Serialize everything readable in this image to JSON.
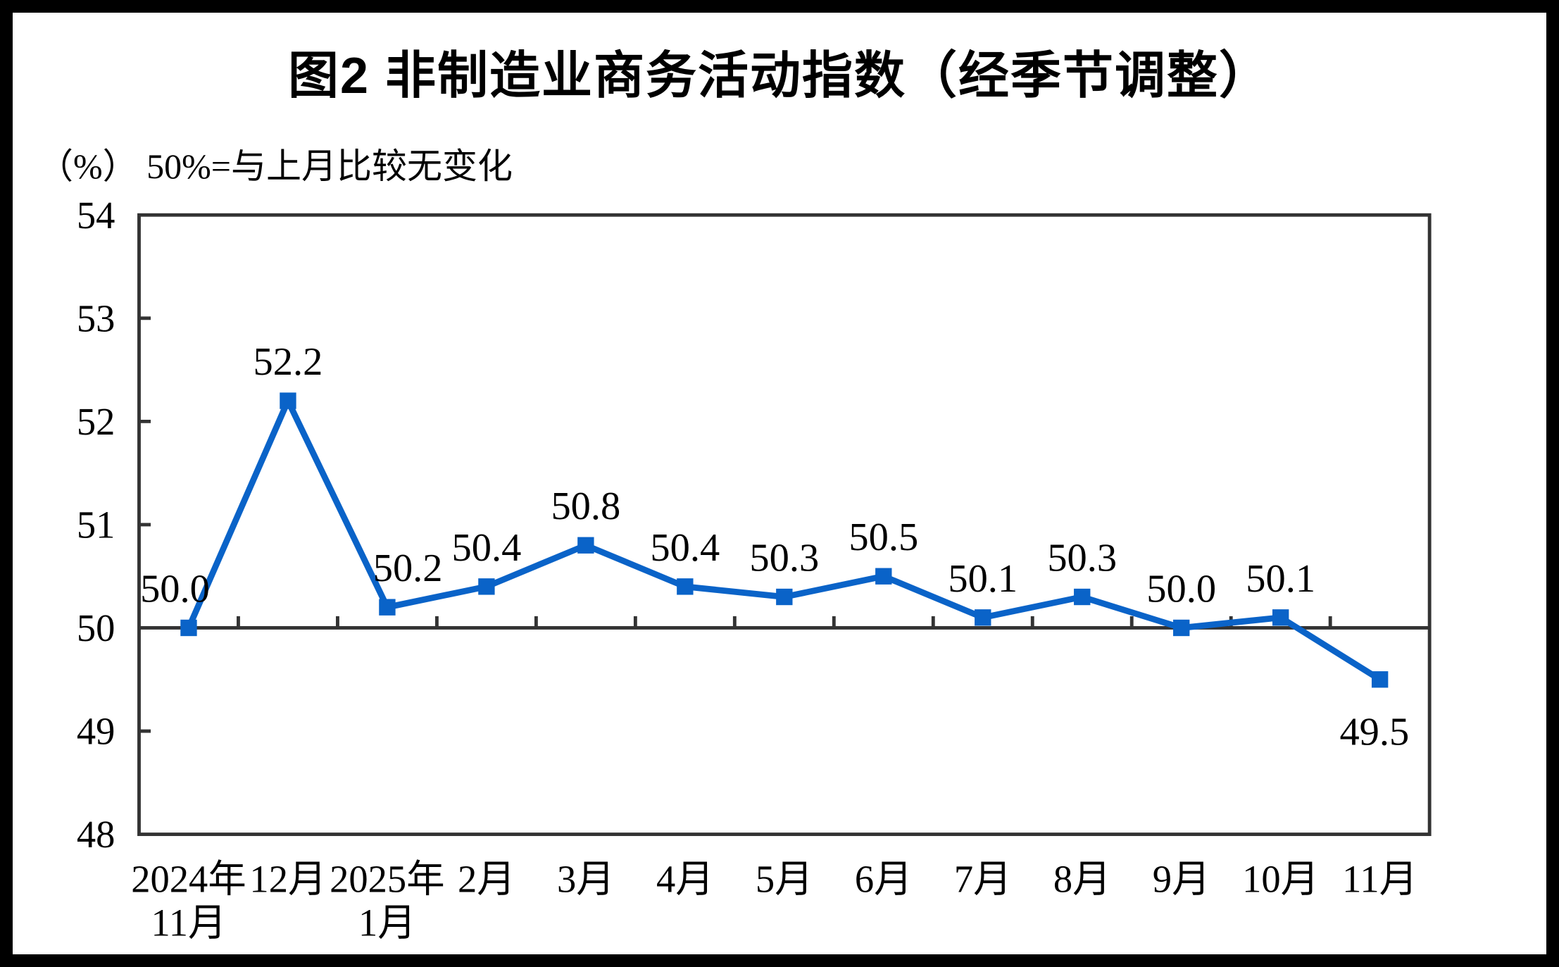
{
  "title": "图2  非制造业商务活动指数（经季节调整）",
  "subtitle": "（%） 50%=与上月比较无变化",
  "chart_data": {
    "type": "line",
    "title": "图2 非制造业商务活动指数（经季节调整）",
    "unit_note": "（%） 50%=与上月比较无变化",
    "categories": [
      [
        "2024年",
        "11月"
      ],
      [
        "12月"
      ],
      [
        "2025年",
        "1月"
      ],
      [
        "2月"
      ],
      [
        "3月"
      ],
      [
        "4月"
      ],
      [
        "5月"
      ],
      [
        "6月"
      ],
      [
        "7月"
      ],
      [
        "8月"
      ],
      [
        "9月"
      ],
      [
        "10月"
      ],
      [
        "11月"
      ]
    ],
    "series": [
      {
        "name": "非制造业商务活动指数",
        "values": [
          50.0,
          52.2,
          50.2,
          50.4,
          50.8,
          50.4,
          50.3,
          50.5,
          50.1,
          50.3,
          50.0,
          50.1,
          49.5
        ],
        "color": "#0a63c8",
        "marker": "square"
      }
    ],
    "data_labels": [
      "50.0",
      "52.2",
      "50.2",
      "50.4",
      "50.8",
      "50.4",
      "50.3",
      "50.5",
      "50.1",
      "50.3",
      "50.0",
      "50.1",
      "49.5"
    ],
    "ylim": [
      48,
      54
    ],
    "yticks": [
      54,
      53,
      52,
      51,
      50,
      49,
      48
    ],
    "reference_line": 50,
    "axis_color": "#333333",
    "text_color": "#000000",
    "grid": false,
    "legend": "none"
  }
}
